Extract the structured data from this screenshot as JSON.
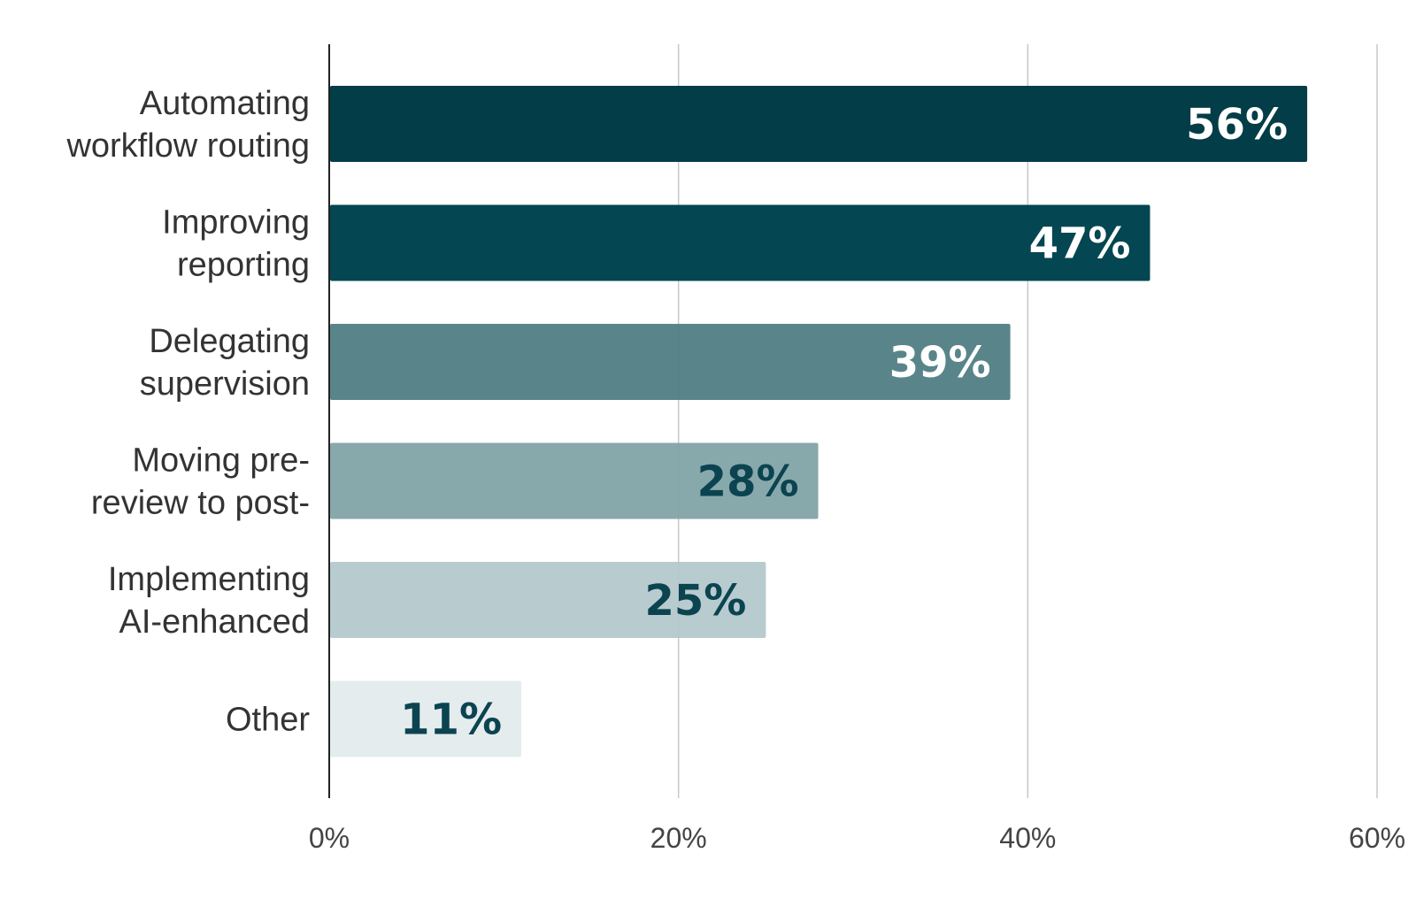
{
  "chart_data": {
    "type": "bar",
    "orientation": "horizontal",
    "categories": [
      [
        "Automating",
        "workflow routing"
      ],
      [
        "Improving",
        "reporting"
      ],
      [
        "Delegating",
        "supervision"
      ],
      [
        "Moving pre-",
        "review to post-"
      ],
      [
        "Implementing",
        "AI-enhanced"
      ],
      [
        "Other"
      ]
    ],
    "values": [
      56,
      47,
      39,
      28,
      25,
      11
    ],
    "value_labels": [
      "56%",
      "47%",
      "39%",
      "28%",
      "25%",
      "11%"
    ],
    "bar_colors": [
      "#033d47",
      "#044652",
      "#4f7d83",
      "#82a4a8",
      "#b4c8cc",
      "#e4ecee"
    ],
    "label_colors": [
      "#ffffff",
      "#ffffff",
      "#ffffff",
      "#0b4450",
      "#0b4450",
      "#0b4450"
    ],
    "xticks": [
      0,
      20,
      40,
      60
    ],
    "xtick_labels": [
      "0%",
      "20%",
      "40%",
      "60%"
    ],
    "xlim": [
      0,
      60
    ],
    "grid": true,
    "title": "",
    "xlabel": "",
    "ylabel": ""
  }
}
